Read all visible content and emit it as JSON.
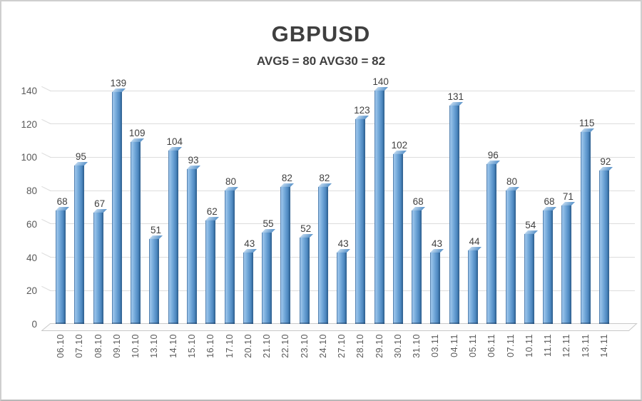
{
  "window": {
    "background": "#ffffff",
    "border_color": "#cfcfcf"
  },
  "chart_data": {
    "type": "bar",
    "title": "GBPUSD",
    "subtitle": "AVG5 = 80 AVG30 = 82",
    "categories": [
      "06.10",
      "07.10",
      "08.10",
      "09.10",
      "10.10",
      "13.10",
      "14.10",
      "15.10",
      "16.10",
      "17.10",
      "20.10",
      "21.10",
      "22.10",
      "23.10",
      "24.10",
      "27.10",
      "28.10",
      "29.10",
      "30.10",
      "31.10",
      "03.11",
      "04.11",
      "05.11",
      "06.11",
      "07.11",
      "10.11",
      "11.11",
      "12.11",
      "13.11",
      "14.11"
    ],
    "values": [
      68,
      95,
      67,
      139,
      109,
      51,
      104,
      93,
      62,
      80,
      43,
      55,
      82,
      52,
      82,
      43,
      123,
      140,
      102,
      68,
      43,
      131,
      44,
      96,
      80,
      54,
      68,
      71,
      115,
      92
    ],
    "xlabel": "",
    "ylabel": "",
    "ylim": [
      0,
      140
    ],
    "yticks": [
      0,
      20,
      40,
      60,
      80,
      100,
      120,
      140
    ],
    "grid": true,
    "legend": false,
    "style": "3d-column",
    "colors": {
      "bar_main": "#5b9bd5",
      "bar_highlight": "#9dc4ea",
      "bar_dark_edge": "#30608f",
      "gridline": "#dcdcdc",
      "title_text": "#3f3f3f",
      "value_label_text": "#404040",
      "axis_label_text": "#595959"
    }
  }
}
